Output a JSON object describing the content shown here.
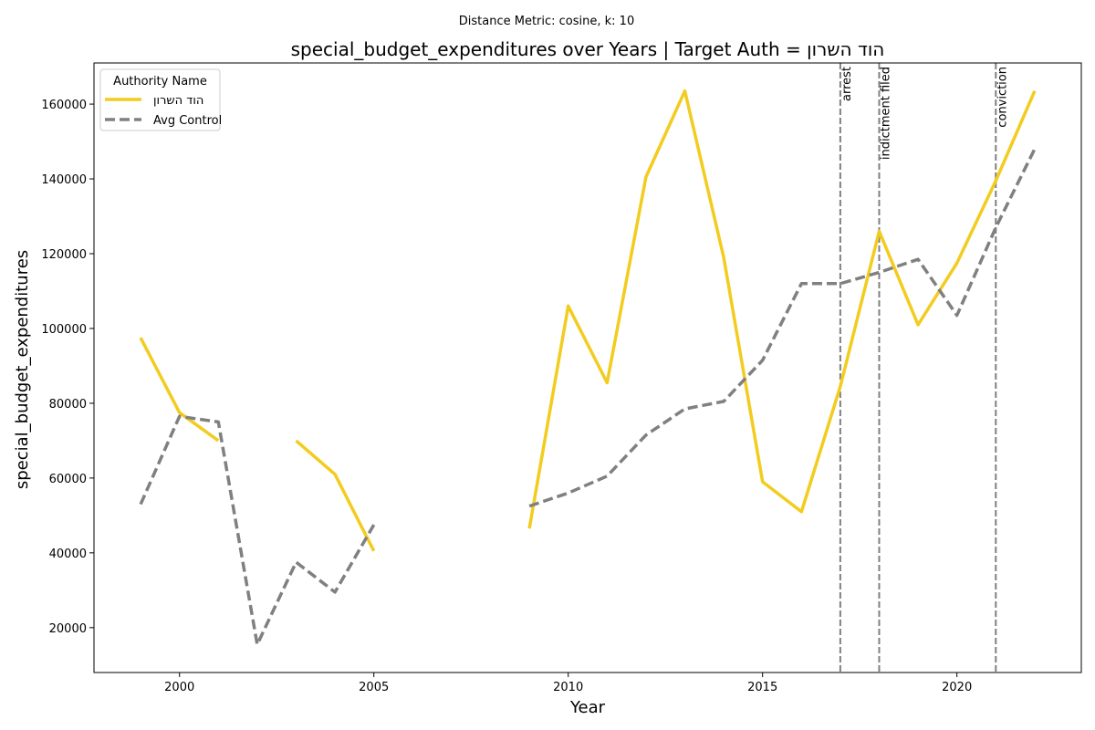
{
  "chart_data": {
    "type": "line",
    "suptitle": "Distance Metric: cosine, k: 10",
    "title": "special_budget_expenditures over Years | Target Auth = הוד השרון",
    "xlabel": "Year",
    "ylabel": "special_budget_expenditures",
    "xlim": [
      1997.8,
      2023.2
    ],
    "ylim": [
      8000,
      171000
    ],
    "xticks": [
      2000,
      2005,
      2010,
      2015,
      2020
    ],
    "yticks": [
      20000,
      40000,
      60000,
      80000,
      100000,
      120000,
      140000,
      160000
    ],
    "grid": false,
    "legend": {
      "title": "Authority Name",
      "placement": "upper-left"
    },
    "series": [
      {
        "name": "הוד השרון",
        "color": "#f2cc1f",
        "style": "solid",
        "points": [
          [
            1999,
            97500
          ],
          [
            2000,
            77500
          ],
          [
            2001,
            70000
          ],
          [
            2002,
            null
          ],
          [
            2003,
            70000
          ],
          [
            2004,
            61000
          ],
          [
            2005,
            40500
          ],
          [
            2006,
            null
          ],
          [
            2007,
            null
          ],
          [
            2008,
            null
          ],
          [
            2009,
            46500
          ],
          [
            2010,
            106000
          ],
          [
            2011,
            85500
          ],
          [
            2012,
            140500
          ],
          [
            2013,
            163500
          ],
          [
            2014,
            119000
          ],
          [
            2015,
            59000
          ],
          [
            2016,
            51000
          ],
          [
            2017,
            84500
          ],
          [
            2018,
            126000
          ],
          [
            2019,
            101000
          ],
          [
            2020,
            117500
          ],
          [
            2021,
            139500
          ],
          [
            2022,
            163500
          ]
        ]
      },
      {
        "name": "Avg Control",
        "color": "#808080",
        "style": "dashed",
        "points": [
          [
            1999,
            53000
          ],
          [
            2000,
            76500
          ],
          [
            2001,
            75000
          ],
          [
            2002,
            15500
          ],
          [
            2003,
            37500
          ],
          [
            2004,
            29500
          ],
          [
            2005,
            47500
          ],
          [
            2006,
            null
          ],
          [
            2007,
            null
          ],
          [
            2008,
            null
          ],
          [
            2009,
            52500
          ],
          [
            2010,
            56000
          ],
          [
            2011,
            60500
          ],
          [
            2012,
            71500
          ],
          [
            2013,
            78500
          ],
          [
            2014,
            80500
          ],
          [
            2015,
            91500
          ],
          [
            2016,
            112000
          ],
          [
            2017,
            112000
          ],
          [
            2018,
            115000
          ],
          [
            2019,
            118500
          ],
          [
            2020,
            103500
          ],
          [
            2021,
            127000
          ],
          [
            2022,
            148000
          ]
        ]
      }
    ],
    "events": [
      {
        "x": 2017,
        "label": "arrest"
      },
      {
        "x": 2018,
        "label": "indictment filed"
      },
      {
        "x": 2021,
        "label": "conviction"
      }
    ]
  }
}
